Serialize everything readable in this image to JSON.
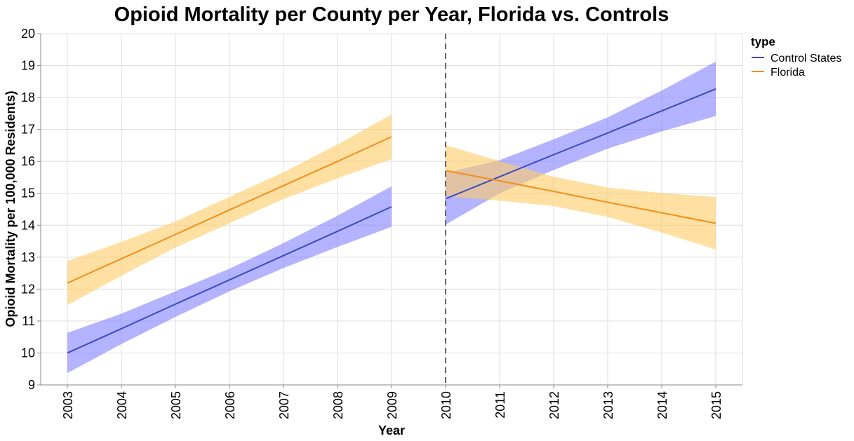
{
  "chart_data": {
    "type": "line",
    "title": "Opioid Mortality per County per Year, Florida vs. Controls",
    "xlabel": "Year",
    "ylabel": "Opioid Mortality per 100,000 Residents)",
    "xlim": [
      2003,
      2015
    ],
    "ylim": [
      9,
      20
    ],
    "x_ticks": [
      2003,
      2004,
      2005,
      2006,
      2007,
      2008,
      2009,
      2010,
      2011,
      2012,
      2013,
      2014,
      2015
    ],
    "y_ticks": [
      9,
      10,
      11,
      12,
      13,
      14,
      15,
      16,
      17,
      18,
      19,
      20
    ],
    "grid": true,
    "policy_line_x": 2010,
    "legend": {
      "title": "type",
      "position": "top-right",
      "entries": [
        {
          "label": "Control States",
          "color": "#3b4cc0"
        },
        {
          "label": "Florida",
          "color": "#f28e1c"
        }
      ]
    },
    "series": [
      {
        "name": "Control States",
        "segment": "pre",
        "color": "#3b4cc0",
        "band_color": "#8080ff",
        "x": [
          2003,
          2004,
          2005,
          2006,
          2007,
          2008,
          2009
        ],
        "y": [
          10.0,
          10.76,
          11.53,
          12.29,
          13.05,
          13.81,
          14.58
        ],
        "lower": [
          9.37,
          10.28,
          11.13,
          11.93,
          12.66,
          13.32,
          13.95
        ],
        "upper": [
          10.63,
          11.23,
          11.93,
          12.64,
          13.44,
          14.3,
          15.22
        ]
      },
      {
        "name": "Florida",
        "segment": "pre",
        "color": "#f28e1c",
        "band_color": "#ffcc66",
        "x": [
          2003,
          2004,
          2005,
          2006,
          2007,
          2008,
          2009
        ],
        "y": [
          12.19,
          12.95,
          13.71,
          14.48,
          15.24,
          16.0,
          16.77
        ],
        "lower": [
          11.5,
          12.42,
          13.3,
          14.06,
          14.82,
          15.47,
          16.07
        ],
        "upper": [
          12.88,
          13.48,
          14.12,
          14.89,
          15.66,
          16.53,
          17.47
        ]
      },
      {
        "name": "Control States",
        "segment": "post",
        "color": "#3b4cc0",
        "band_color": "#8080ff",
        "x": [
          2010,
          2011,
          2012,
          2013,
          2014,
          2015
        ],
        "y": [
          14.83,
          15.52,
          16.21,
          16.89,
          17.58,
          18.27
        ],
        "lower": [
          14.02,
          15.0,
          15.73,
          16.4,
          16.94,
          17.42
        ],
        "upper": [
          15.64,
          16.04,
          16.69,
          17.38,
          18.22,
          19.12
        ]
      },
      {
        "name": "Florida",
        "segment": "post",
        "color": "#f28e1c",
        "band_color": "#ffcc66",
        "x": [
          2010,
          2011,
          2012,
          2013,
          2014,
          2015
        ],
        "y": [
          15.71,
          15.39,
          15.06,
          14.72,
          14.39,
          14.06
        ],
        "lower": [
          14.91,
          14.77,
          14.6,
          14.26,
          13.77,
          13.24
        ],
        "upper": [
          16.51,
          16.01,
          15.52,
          15.18,
          15.01,
          14.88
        ]
      }
    ]
  }
}
